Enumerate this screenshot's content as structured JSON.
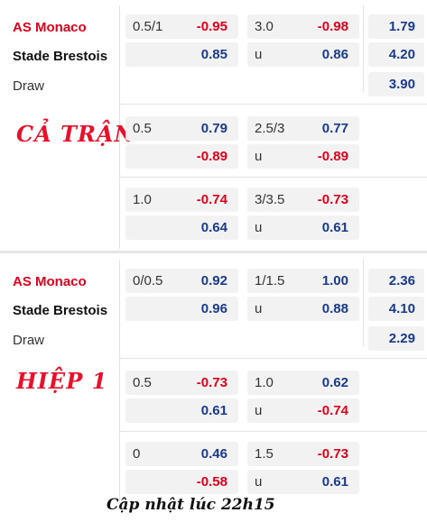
{
  "sections": [
    {
      "home": "AS Monaco",
      "away": "Stade Brestois",
      "draw": "Draw",
      "label": "CẢ TRẬN",
      "rows": [
        {
          "ah_line": "0.5/1",
          "ah_home": "-0.95",
          "ah_away": "0.85",
          "ou_line": "3.0",
          "ou_over": "-0.98",
          "ou_under_label": "u",
          "ou_under": "0.86",
          "x12_home": "1.79",
          "x12_away": "4.20",
          "x12_draw": "3.90"
        },
        {
          "ah_line": "0.5",
          "ah_home": "0.79",
          "ah_away": "-0.89",
          "ou_line": "2.5/3",
          "ou_over": "0.77",
          "ou_under_label": "u",
          "ou_under": "-0.89"
        },
        {
          "ah_line": "1.0",
          "ah_home": "-0.74",
          "ah_away": "0.64",
          "ou_line": "3/3.5",
          "ou_over": "-0.73",
          "ou_under_label": "u",
          "ou_under": "0.61"
        }
      ]
    },
    {
      "home": "AS Monaco",
      "away": "Stade Brestois",
      "draw": "Draw",
      "label": "HIỆP 1",
      "rows": [
        {
          "ah_line": "0/0.5",
          "ah_home": "0.92",
          "ah_away": "0.96",
          "ou_line": "1/1.5",
          "ou_over": "1.00",
          "ou_under_label": "u",
          "ou_under": "0.88",
          "x12_home": "2.36",
          "x12_away": "4.10",
          "x12_draw": "2.29"
        },
        {
          "ah_line": "0.5",
          "ah_home": "-0.73",
          "ah_away": "0.61",
          "ou_line": "1.0",
          "ou_over": "0.62",
          "ou_under_label": "u",
          "ou_under": "-0.74"
        },
        {
          "ah_line": "0",
          "ah_home": "0.46",
          "ah_away": "-0.58",
          "ou_line": "1.5",
          "ou_over": "-0.73",
          "ou_under_label": "u",
          "ou_under": "0.61"
        }
      ]
    }
  ],
  "footer": "Cập nhật lúc 22h15",
  "colors": {
    "home": "#e0001b",
    "negative": "#e0001b",
    "positive": "#1a3a8c",
    "cell_bg": "#f2f2f2"
  }
}
